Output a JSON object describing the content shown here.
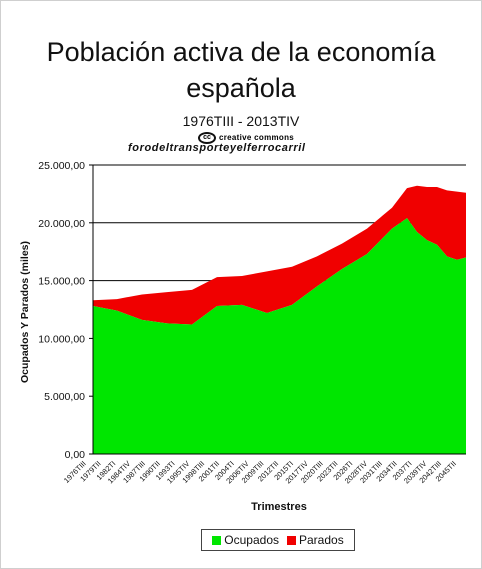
{
  "chart_data": {
    "type": "area",
    "stacked": true,
    "title": "Población activa de la economía española",
    "subtitle": "1976TIII - 2013TIV",
    "logo_text": "creative commons",
    "watermark": "forodeltransporteyelferrocarril",
    "xlabel": "Trimestres",
    "ylabel": "Ocupados Y Parados (miles)",
    "ylim": [
      0,
      25000
    ],
    "yticks": [
      0,
      5000,
      10000,
      15000,
      20000,
      25000
    ],
    "ytick_labels": [
      "0,00",
      "5.000,00",
      "10.000,00",
      "15.000,00",
      "20.000,00",
      "25.000,00"
    ],
    "gridlines": [
      15000,
      20000,
      25000
    ],
    "xtick_labels": [
      "1976TIII",
      "1979TII",
      "1982TI",
      "1984TIV",
      "1987TIII",
      "1990TII",
      "1993TI",
      "1995TIV",
      "1998TIII",
      "2001TII",
      "2004TI",
      "2006TIV",
      "2009TIII",
      "2012TII",
      "2015TI",
      "2017TIV",
      "2020TIII",
      "2023TII",
      "2026TI",
      "2028TIV",
      "2031TIII",
      "2034TII",
      "2037TI",
      "2039TIV",
      "2042TIII",
      "2045TII"
    ],
    "x_years": [
      1976.6,
      1979,
      1981.5,
      1984,
      1986.5,
      1989,
      1991.5,
      1994,
      1996.5,
      1999,
      2001.5,
      2004,
      2006.5,
      2008,
      2009,
      2010,
      2011,
      2012,
      2013,
      2013.9
    ],
    "series": [
      {
        "name": "Ocupados",
        "color": "#00e600",
        "values": [
          12800,
          12400,
          11600,
          11300,
          11200,
          12800,
          12900,
          12200,
          12900,
          14500,
          16000,
          17300,
          19500,
          20400,
          19200,
          18500,
          18100,
          17100,
          16800,
          17000
        ]
      },
      {
        "name": "Parados",
        "color": "#f00000",
        "values": [
          500,
          1000,
          2200,
          2700,
          3000,
          2500,
          2500,
          3600,
          3300,
          2600,
          2200,
          2200,
          1800,
          2600,
          4000,
          4600,
          5000,
          5700,
          5900,
          5600
        ]
      }
    ],
    "legend": "bottom-center"
  }
}
